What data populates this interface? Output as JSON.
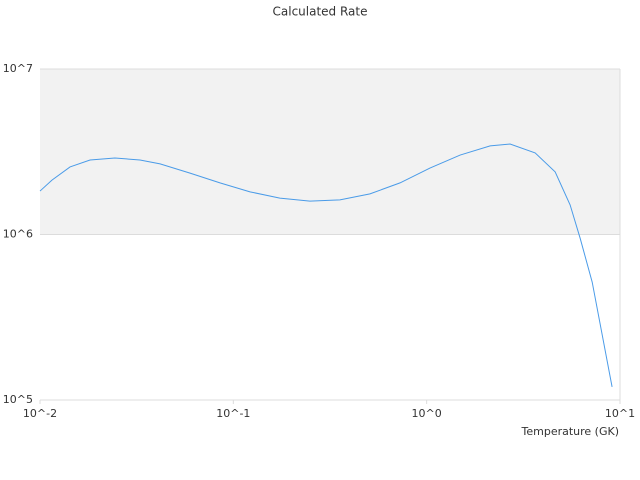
{
  "chart_data": {
    "type": "line",
    "title": "Calculated Rate",
    "x_label": "Temperature (GK)",
    "xscale": "log",
    "yscale": "log",
    "xlim": [
      0.01,
      10
    ],
    "ylim": [
      100000,
      10000000
    ],
    "xticks": [
      {
        "value": 0.01,
        "label": "10^-2"
      },
      {
        "value": 0.1,
        "label": "10^-1"
      },
      {
        "value": 1,
        "label": "10^0"
      },
      {
        "value": 10,
        "label": "10^1"
      }
    ],
    "yticks": [
      {
        "value": 100000,
        "label": "10^5"
      },
      {
        "value": 1000000,
        "label": "10^6"
      },
      {
        "value": 10000000,
        "label": "10^7"
      }
    ],
    "grid": true,
    "band_color": "#f2f2f2",
    "x": [
      0.01,
      0.01153,
      0.0143,
      0.01815,
      0.0244,
      0.0329,
      0.0418,
      0.0597,
      0.0853,
      0.122,
      0.174,
      0.249,
      0.356,
      0.509,
      0.728,
      1.04,
      1.49,
      2.13,
      2.7,
      3.64,
      4.62,
      5.52,
      6.22,
      7.18,
      9.1
    ],
    "series": [
      {
        "color": "#4a9be8",
        "values": [
          1830000,
          2130000,
          2560000,
          2820000,
          2900000,
          2820000,
          2670000,
          2350000,
          2050000,
          1810000,
          1660000,
          1590000,
          1620000,
          1760000,
          2050000,
          2520000,
          3020000,
          3430000,
          3520000,
          3110000,
          2390000,
          1510000,
          950000,
          516000,
          120000
        ]
      }
    ]
  }
}
